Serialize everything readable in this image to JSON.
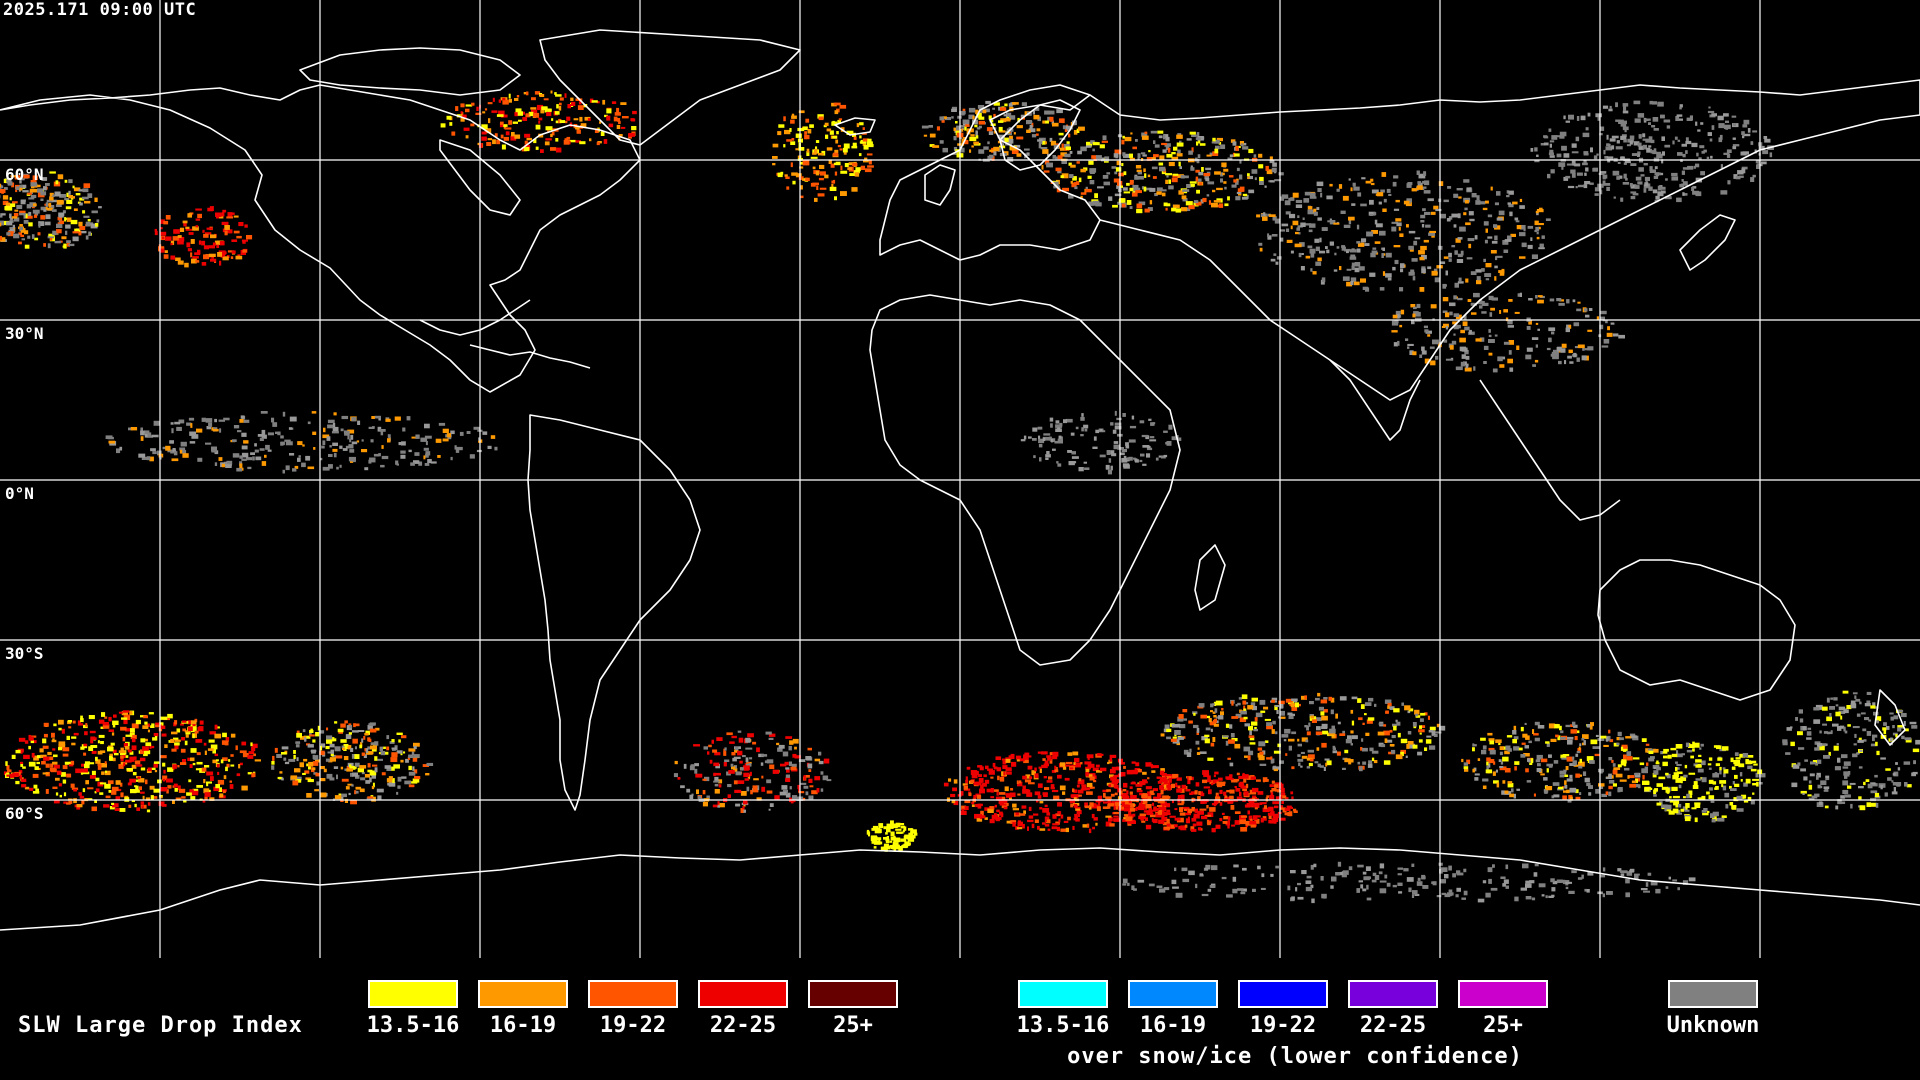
{
  "header": {
    "timestamp": "2025.171 09:00 UTC"
  },
  "map": {
    "lat_labels": [
      "60°N",
      "30°N",
      "0°N",
      "30°S",
      "60°S"
    ],
    "background_color": "#000000",
    "coastline_color": "#ffffff",
    "grid_color": "#ffffff"
  },
  "legend": {
    "title": "SLW Large Drop Index",
    "standard": [
      {
        "label": "13.5-16",
        "color": "#ffff00"
      },
      {
        "label": "16-19",
        "color": "#ff9900"
      },
      {
        "label": "19-22",
        "color": "#ff5500"
      },
      {
        "label": "22-25",
        "color": "#ee0000"
      },
      {
        "label": "25+",
        "color": "#660000"
      }
    ],
    "snow_ice": [
      {
        "label": "13.5-16",
        "color": "#00ffff"
      },
      {
        "label": "16-19",
        "color": "#0088ff"
      },
      {
        "label": "19-22",
        "color": "#0000ff"
      },
      {
        "label": "22-25",
        "color": "#7700dd"
      },
      {
        "label": "25+",
        "color": "#cc00cc"
      }
    ],
    "snow_ice_caption": "over snow/ice (lower confidence)",
    "unknown": {
      "label": "Unknown",
      "color": "#808080"
    }
  }
}
